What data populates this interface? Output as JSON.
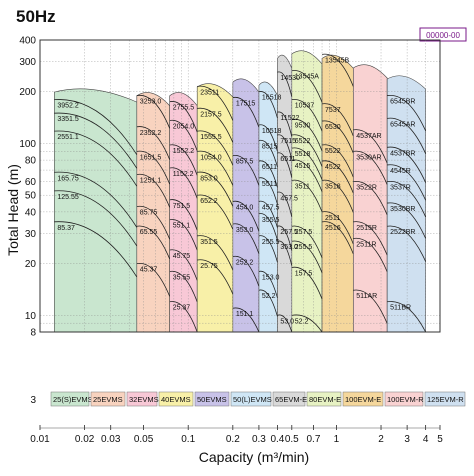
{
  "header": {
    "title": "50Hz",
    "badge": "00000-00"
  },
  "chart_data": {
    "type": "area",
    "xlabel": "Capacity (m³/min)",
    "ylabel": "Total Head (m)",
    "x_scale": "log",
    "y_scale": "log",
    "xlim": [
      0.01,
      5
    ],
    "ylim": [
      8,
      400
    ],
    "x_ticks": [
      0.01,
      0.02,
      0.03,
      0.05,
      0.1,
      0.2,
      0.3,
      0.4,
      0.5,
      0.7,
      1,
      2,
      3,
      4,
      5
    ],
    "y_ticks": [
      8,
      10,
      20,
      30,
      40,
      50,
      60,
      80,
      100,
      200,
      300,
      400
    ],
    "x_tick_labels": [
      "0.01",
      "0.02",
      "0.03",
      "0.05",
      "0.1",
      "0.2",
      "0.3",
      "0.4",
      "0.5",
      "0.7",
      "1",
      "2",
      "3",
      "4",
      "5"
    ],
    "y_tick_labels": [
      "8",
      "10",
      "20",
      "30",
      "40",
      "50",
      "60",
      "80",
      "100",
      "200",
      "300",
      "400"
    ],
    "grid": true,
    "legend_position": "bottom",
    "series": [
      {
        "name": "25(S)EVMS",
        "color": "#c9e6cf",
        "x_range": [
          0.0125,
          0.045
        ],
        "max_head": 210,
        "labels": [
          "3952.2",
          "3351.5",
          "2551.1",
          "165.75",
          "125.55",
          "85.37"
        ],
        "label_heads": [
          180,
          150,
          118,
          68,
          53,
          35
        ]
      },
      {
        "name": "25EVMS",
        "color": "#f8d3bf",
        "x_range": [
          0.045,
          0.075
        ],
        "max_head": 200,
        "labels": [
          "3253.0",
          "2352.2",
          "1651.5",
          "1251.1",
          "85.75",
          "65.55",
          "45.37"
        ],
        "label_heads": [
          190,
          125,
          90,
          66,
          43,
          33,
          20
        ]
      },
      {
        "name": "32EVMS",
        "color": "#f8c8d6",
        "x_range": [
          0.075,
          0.115
        ],
        "max_head": 200,
        "labels": [
          "2755.5",
          "2054.0",
          "1552.2",
          "1152.2",
          "751.5",
          "551.1",
          "45.75",
          "35.55",
          "25.37"
        ],
        "label_heads": [
          175,
          136,
          98,
          72,
          47,
          36,
          24,
          18,
          12
        ]
      },
      {
        "name": "40EVMS",
        "color": "#f8f0a8",
        "x_range": [
          0.115,
          0.2
        ],
        "max_head": 225,
        "labels": [
          "23511",
          "2157.5",
          "1555.5",
          "1054.0",
          "853.0",
          "652.2",
          "351.5",
          "25.75"
        ],
        "label_heads": [
          215,
          160,
          118,
          90,
          68,
          50,
          29,
          21
        ]
      },
      {
        "name": "50EVMS",
        "color": "#c8c2e8",
        "x_range": [
          0.2,
          0.3
        ],
        "max_head": 240,
        "labels": [
          "17515",
          "857.5",
          "454.0",
          "353.0",
          "252.2",
          "151.1"
        ],
        "label_heads": [
          185,
          85,
          46,
          34,
          22,
          11
        ]
      },
      {
        "name": "50(L)EVMS",
        "color": "#cfe6f5",
        "x_range": [
          0.3,
          0.4
        ],
        "max_head": 230,
        "labels": [
          "16518",
          "10518",
          "8515",
          "6511",
          "5511",
          "457.5",
          "355.5",
          "255.5",
          "153.0",
          "52.2"
        ],
        "label_heads": [
          200,
          128,
          104,
          79,
          63,
          46,
          39,
          29,
          18,
          14
        ]
      },
      {
        "name": "65EVM-E",
        "color": "#d9d9d9",
        "x_range": [
          0.4,
          0.5
        ],
        "max_head": 330,
        "labels": [
          "14530",
          "11522",
          "7515",
          "6511",
          "457.5",
          "257.5",
          "353.0",
          "53.0"
        ],
        "label_heads": [
          260,
          152,
          112,
          88,
          52,
          33,
          27,
          10
        ]
      },
      {
        "name": "80EVM-E",
        "color": "#e7f2c3",
        "x_range": [
          0.5,
          0.8
        ],
        "max_head": 350,
        "labels": [
          "13545A",
          "10537",
          "9530",
          "6522",
          "5518",
          "4515",
          "3511",
          "257.5",
          "255.5",
          "157.5",
          "52.2"
        ],
        "label_heads": [
          265,
          180,
          138,
          112,
          94,
          80,
          61,
          33,
          27,
          19,
          10
        ]
      },
      {
        "name": "100EVM-E",
        "color": "#f5d79c",
        "x_range": [
          0.8,
          1.3
        ],
        "max_head": 330,
        "labels": [
          "13545B",
          "7537",
          "6530",
          "5522",
          "4522",
          "3518",
          "2511",
          "2516"
        ],
        "label_heads": [
          330,
          170,
          135,
          98,
          79,
          61,
          40,
          35
        ]
      },
      {
        "name": "100EVM-R",
        "color": "#f9d2d2",
        "x_range": [
          1.3,
          2.2
        ],
        "max_head": 290,
        "labels": [
          "4537AR",
          "3530AR",
          "3522R",
          "2515R",
          "2511R",
          "511AR"
        ],
        "label_heads": [
          120,
          90,
          60,
          35,
          28,
          14
        ]
      },
      {
        "name": "125EVM-R",
        "color": "#cfe0f0",
        "x_range": [
          2.2,
          4.0
        ],
        "max_head": 250,
        "labels": [
          "6545BR",
          "6545AR",
          "4537BR",
          "4545R",
          "3537R",
          "3530BR",
          "2522BR",
          "511BR"
        ],
        "label_heads": [
          190,
          140,
          95,
          75,
          60,
          45,
          33,
          12
        ]
      }
    ]
  }
}
